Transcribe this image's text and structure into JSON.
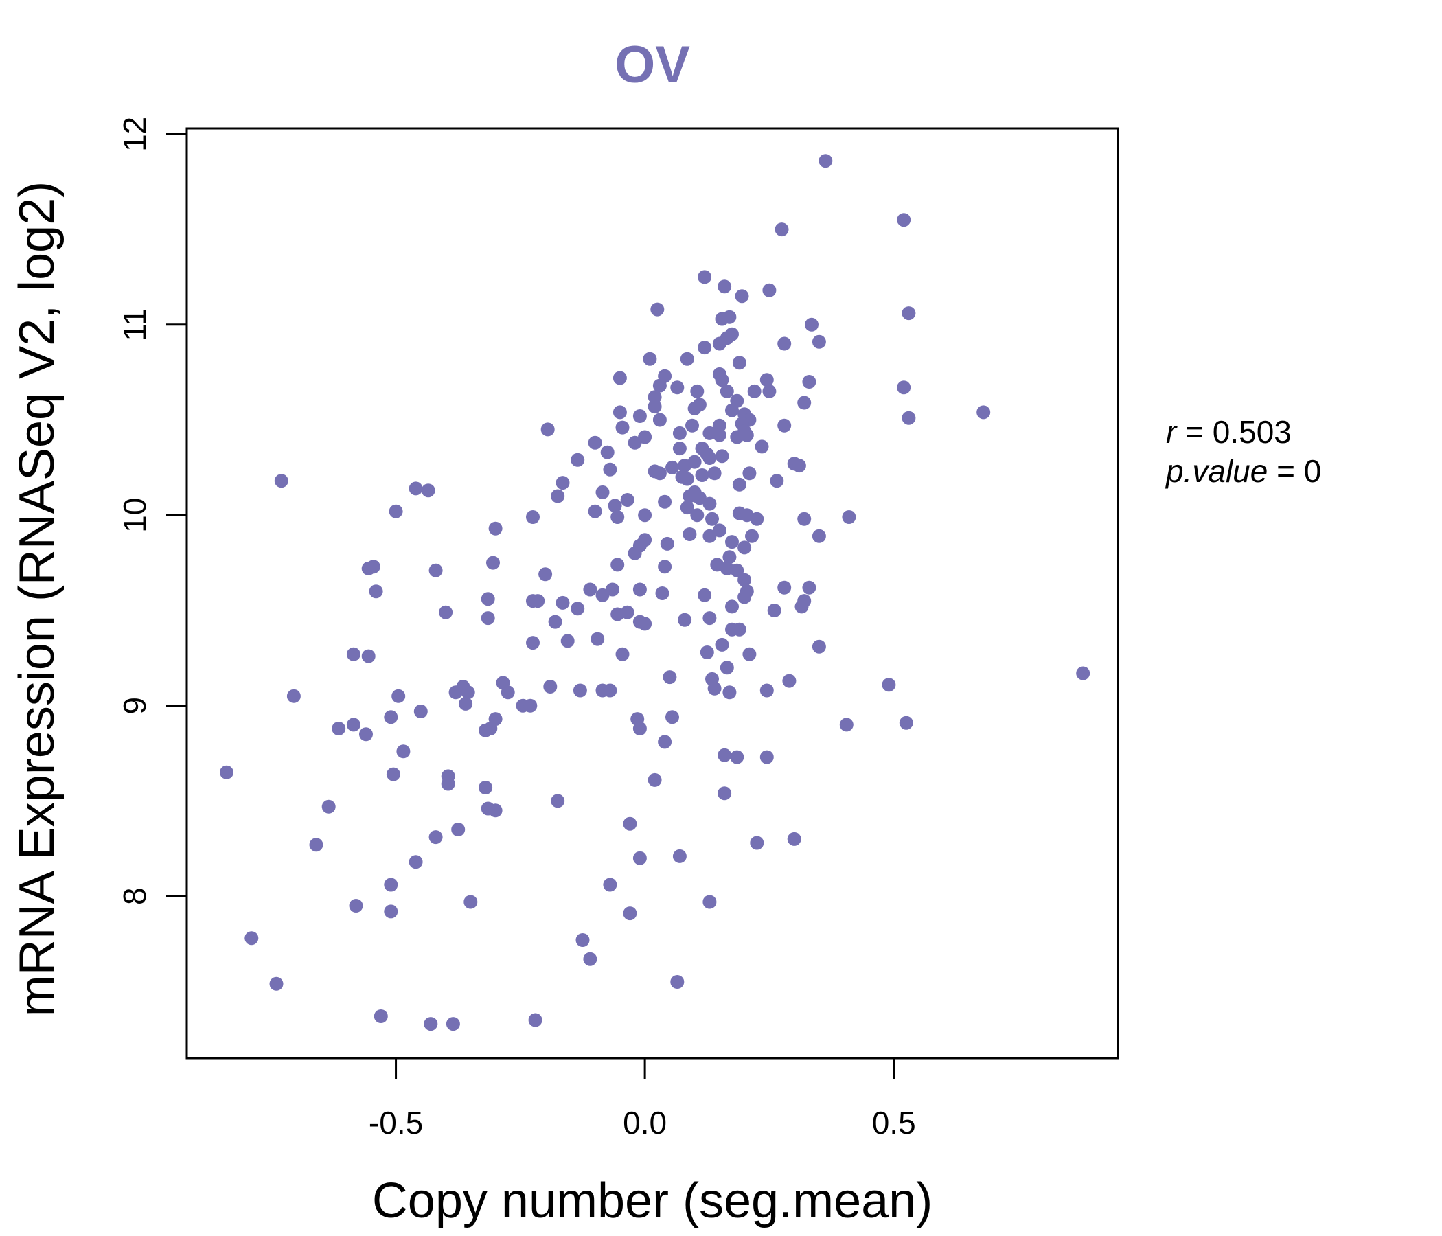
{
  "colors": {
    "point": "#7570B3",
    "title": "#7570B3",
    "axis": "#000000"
  },
  "chart_data": {
    "type": "scatter",
    "title": "OV",
    "xlabel": "Copy number (seg.mean)",
    "ylabel": "mRNA Expression (RNASeq V2, log2)",
    "xlim": [
      -0.92,
      0.95
    ],
    "ylim": [
      7.15,
      12.03
    ],
    "x_ticks": [
      {
        "value": -0.5,
        "label": "-0.5"
      },
      {
        "value": 0.0,
        "label": "0.0"
      },
      {
        "value": 0.5,
        "label": "0.5"
      }
    ],
    "y_ticks": [
      {
        "value": 8,
        "label": "8"
      },
      {
        "value": 9,
        "label": "9"
      },
      {
        "value": 10,
        "label": "10"
      },
      {
        "value": 11,
        "label": "11"
      },
      {
        "value": 12,
        "label": "12"
      }
    ],
    "grid": false,
    "annotations": {
      "r_symbol": "r",
      "r_eq": " = 0.503",
      "p_symbol": "p.value",
      "p_eq": " = 0"
    },
    "points": [
      [
        0.363,
        11.86
      ],
      [
        0.275,
        11.5
      ],
      [
        0.52,
        11.55
      ],
      [
        0.12,
        11.25
      ],
      [
        0.16,
        11.2
      ],
      [
        0.195,
        11.15
      ],
      [
        0.25,
        11.18
      ],
      [
        0.025,
        11.08
      ],
      [
        0.155,
        11.03
      ],
      [
        0.17,
        11.04
      ],
      [
        0.335,
        11.0
      ],
      [
        0.53,
        11.06
      ],
      [
        0.175,
        10.95
      ],
      [
        0.165,
        10.93
      ],
      [
        0.15,
        10.9
      ],
      [
        0.12,
        10.88
      ],
      [
        0.28,
        10.9
      ],
      [
        0.35,
        10.91
      ],
      [
        0.01,
        10.82
      ],
      [
        0.085,
        10.82
      ],
      [
        0.19,
        10.8
      ],
      [
        0.15,
        10.74
      ],
      [
        0.04,
        10.73
      ],
      [
        -0.05,
        10.72
      ],
      [
        0.155,
        10.71
      ],
      [
        0.245,
        10.71
      ],
      [
        0.33,
        10.7
      ],
      [
        0.03,
        10.68
      ],
      [
        0.065,
        10.67
      ],
      [
        0.105,
        10.65
      ],
      [
        0.165,
        10.65
      ],
      [
        0.22,
        10.65
      ],
      [
        0.25,
        10.65
      ],
      [
        0.52,
        10.67
      ],
      [
        0.02,
        10.62
      ],
      [
        0.185,
        10.6
      ],
      [
        0.32,
        10.59
      ],
      [
        0.11,
        10.58
      ],
      [
        0.02,
        10.57
      ],
      [
        0.1,
        10.56
      ],
      [
        0.175,
        10.55
      ],
      [
        -0.05,
        10.54
      ],
      [
        0.2,
        10.53
      ],
      [
        0.68,
        10.54
      ],
      [
        -0.01,
        10.52
      ],
      [
        0.53,
        10.51
      ],
      [
        0.03,
        10.5
      ],
      [
        0.21,
        10.5
      ],
      [
        0.195,
        10.48
      ],
      [
        0.28,
        10.47
      ],
      [
        0.15,
        10.47
      ],
      [
        0.095,
        10.47
      ],
      [
        -0.045,
        10.46
      ],
      [
        -0.195,
        10.45
      ],
      [
        0.2,
        10.44
      ],
      [
        0.07,
        10.43
      ],
      [
        0.13,
        10.43
      ],
      [
        0.15,
        10.42
      ],
      [
        0.205,
        10.42
      ],
      [
        0.0,
        10.41
      ],
      [
        0.185,
        10.41
      ],
      [
        -0.1,
        10.38
      ],
      [
        -0.02,
        10.38
      ],
      [
        0.235,
        10.36
      ],
      [
        0.115,
        10.35
      ],
      [
        0.07,
        10.35
      ],
      [
        0.125,
        10.32
      ],
      [
        -0.075,
        10.33
      ],
      [
        0.155,
        10.31
      ],
      [
        0.13,
        10.3
      ],
      [
        -0.135,
        10.29
      ],
      [
        0.1,
        10.28
      ],
      [
        0.3,
        10.27
      ],
      [
        0.31,
        10.26
      ],
      [
        0.08,
        10.26
      ],
      [
        0.055,
        10.25
      ],
      [
        -0.07,
        10.24
      ],
      [
        0.02,
        10.23
      ],
      [
        0.03,
        10.22
      ],
      [
        0.14,
        10.22
      ],
      [
        0.21,
        10.22
      ],
      [
        0.115,
        10.21
      ],
      [
        0.075,
        10.2
      ],
      [
        0.085,
        10.19
      ],
      [
        0.265,
        10.18
      ],
      [
        -0.165,
        10.17
      ],
      [
        0.19,
        10.16
      ],
      [
        -0.73,
        10.18
      ],
      [
        -0.46,
        10.14
      ],
      [
        -0.435,
        10.13
      ],
      [
        -0.085,
        10.12
      ],
      [
        0.1,
        10.12
      ],
      [
        0.11,
        10.09
      ],
      [
        0.09,
        10.1
      ],
      [
        -0.175,
        10.1
      ],
      [
        -0.035,
        10.08
      ],
      [
        0.04,
        10.07
      ],
      [
        0.13,
        10.06
      ],
      [
        -0.06,
        10.05
      ],
      [
        0.085,
        10.04
      ],
      [
        -0.5,
        10.02
      ],
      [
        -0.1,
        10.02
      ],
      [
        0.19,
        10.01
      ],
      [
        0.0,
        10.0
      ],
      [
        0.105,
        10.0
      ],
      [
        0.205,
        10.0
      ],
      [
        -0.055,
        9.99
      ],
      [
        0.135,
        9.98
      ],
      [
        0.225,
        9.98
      ],
      [
        0.32,
        9.98
      ],
      [
        0.41,
        9.99
      ],
      [
        -0.225,
        9.99
      ],
      [
        -0.3,
        9.93
      ],
      [
        0.15,
        9.92
      ],
      [
        0.13,
        9.89
      ],
      [
        0.215,
        9.89
      ],
      [
        0.35,
        9.89
      ],
      [
        0.09,
        9.9
      ],
      [
        0.0,
        9.87
      ],
      [
        0.045,
        9.85
      ],
      [
        0.175,
        9.86
      ],
      [
        0.2,
        9.83
      ],
      [
        -0.01,
        9.84
      ],
      [
        -0.02,
        9.8
      ],
      [
        0.17,
        9.78
      ],
      [
        -0.305,
        9.75
      ],
      [
        0.145,
        9.74
      ],
      [
        0.04,
        9.73
      ],
      [
        -0.055,
        9.74
      ],
      [
        -0.545,
        9.73
      ],
      [
        -0.555,
        9.72
      ],
      [
        0.165,
        9.72
      ],
      [
        0.185,
        9.71
      ],
      [
        -0.42,
        9.71
      ],
      [
        -0.2,
        9.69
      ],
      [
        0.2,
        9.66
      ],
      [
        -0.065,
        9.61
      ],
      [
        0.28,
        9.62
      ],
      [
        0.33,
        9.62
      ],
      [
        -0.11,
        9.61
      ],
      [
        -0.54,
        9.6
      ],
      [
        -0.01,
        9.61
      ],
      [
        0.205,
        9.6
      ],
      [
        -0.085,
        9.58
      ],
      [
        0.035,
        9.59
      ],
      [
        0.12,
        9.58
      ],
      [
        0.2,
        9.57
      ],
      [
        -0.315,
        9.56
      ],
      [
        0.32,
        9.55
      ],
      [
        -0.215,
        9.55
      ],
      [
        -0.225,
        9.55
      ],
      [
        -0.165,
        9.54
      ],
      [
        0.175,
        9.52
      ],
      [
        -0.135,
        9.51
      ],
      [
        0.315,
        9.52
      ],
      [
        0.26,
        9.5
      ],
      [
        -0.055,
        9.48
      ],
      [
        -0.035,
        9.49
      ],
      [
        -0.4,
        9.49
      ],
      [
        0.13,
        9.46
      ],
      [
        -0.315,
        9.46
      ],
      [
        -0.01,
        9.44
      ],
      [
        0.08,
        9.45
      ],
      [
        -0.18,
        9.44
      ],
      [
        0.0,
        9.43
      ],
      [
        0.175,
        9.4
      ],
      [
        0.19,
        9.4
      ],
      [
        -0.095,
        9.35
      ],
      [
        -0.155,
        9.34
      ],
      [
        -0.225,
        9.33
      ],
      [
        0.155,
        9.32
      ],
      [
        0.35,
        9.31
      ],
      [
        0.125,
        9.28
      ],
      [
        -0.045,
        9.27
      ],
      [
        0.21,
        9.27
      ],
      [
        -0.585,
        9.27
      ],
      [
        -0.555,
        9.26
      ],
      [
        0.165,
        9.2
      ],
      [
        0.88,
        9.17
      ],
      [
        0.05,
        9.15
      ],
      [
        0.135,
        9.14
      ],
      [
        0.29,
        9.13
      ],
      [
        -0.285,
        9.12
      ],
      [
        0.49,
        9.11
      ],
      [
        -0.365,
        9.1
      ],
      [
        -0.19,
        9.1
      ],
      [
        0.14,
        9.09
      ],
      [
        -0.085,
        9.08
      ],
      [
        -0.13,
        9.08
      ],
      [
        0.17,
        9.07
      ],
      [
        -0.275,
        9.07
      ],
      [
        -0.07,
        9.08
      ],
      [
        0.245,
        9.08
      ],
      [
        -0.38,
        9.07
      ],
      [
        -0.355,
        9.07
      ],
      [
        -0.705,
        9.05
      ],
      [
        -0.495,
        9.05
      ],
      [
        -0.36,
        9.01
      ],
      [
        -0.245,
        9.0
      ],
      [
        -0.23,
        9.0
      ],
      [
        -0.45,
        8.97
      ],
      [
        -0.51,
        8.94
      ],
      [
        0.055,
        8.94
      ],
      [
        -0.015,
        8.93
      ],
      [
        -0.3,
        8.93
      ],
      [
        -0.585,
        8.9
      ],
      [
        0.405,
        8.9
      ],
      [
        0.525,
        8.91
      ],
      [
        -0.615,
        8.88
      ],
      [
        -0.32,
        8.87
      ],
      [
        -0.31,
        8.88
      ],
      [
        -0.01,
        8.88
      ],
      [
        -0.56,
        8.85
      ],
      [
        0.04,
        8.81
      ],
      [
        -0.485,
        8.76
      ],
      [
        0.16,
        8.74
      ],
      [
        0.185,
        8.73
      ],
      [
        0.245,
        8.73
      ],
      [
        -0.84,
        8.65
      ],
      [
        -0.505,
        8.64
      ],
      [
        -0.395,
        8.63
      ],
      [
        -0.395,
        8.59
      ],
      [
        0.02,
        8.61
      ],
      [
        -0.32,
        8.57
      ],
      [
        0.16,
        8.54
      ],
      [
        -0.175,
        8.5
      ],
      [
        -0.635,
        8.47
      ],
      [
        -0.315,
        8.46
      ],
      [
        -0.3,
        8.45
      ],
      [
        -0.03,
        8.38
      ],
      [
        -0.375,
        8.35
      ],
      [
        -0.42,
        8.31
      ],
      [
        0.3,
        8.3
      ],
      [
        0.225,
        8.28
      ],
      [
        -0.66,
        8.27
      ],
      [
        0.07,
        8.21
      ],
      [
        -0.01,
        8.2
      ],
      [
        -0.46,
        8.18
      ],
      [
        -0.07,
        8.06
      ],
      [
        -0.51,
        8.06
      ],
      [
        0.13,
        7.97
      ],
      [
        -0.35,
        7.97
      ],
      [
        -0.58,
        7.95
      ],
      [
        -0.51,
        7.92
      ],
      [
        -0.03,
        7.91
      ],
      [
        -0.79,
        7.78
      ],
      [
        -0.125,
        7.77
      ],
      [
        -0.11,
        7.67
      ],
      [
        0.065,
        7.55
      ],
      [
        -0.74,
        7.54
      ],
      [
        -0.53,
        7.37
      ],
      [
        -0.43,
        7.33
      ],
      [
        -0.385,
        7.33
      ],
      [
        -0.22,
        7.35
      ]
    ]
  }
}
